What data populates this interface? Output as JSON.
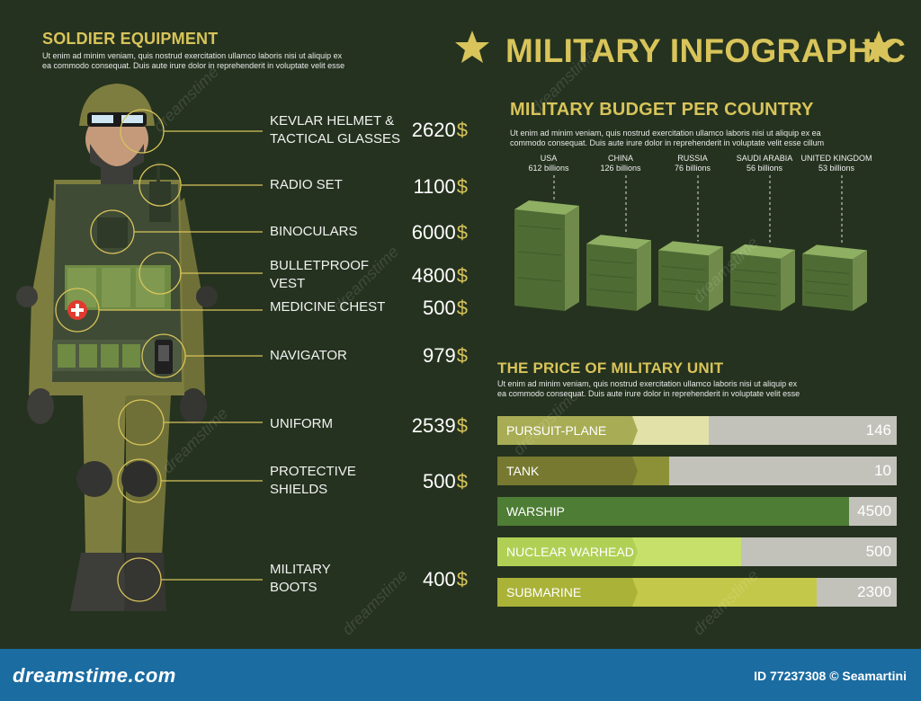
{
  "equipment": {
    "title": "SOLDIER EQUIPMENT",
    "description": "Ut enim ad minim veniam, quis nostrud exercitation ullamco laboris nisi ut aliquip ex\nea commodo consequat. Duis aute irure dolor in reprehenderit in voluptate velit esse",
    "currency": "$",
    "items": [
      {
        "label": "KEVLAR HELMET &\nTACTICAL GLASSES",
        "price": "2620"
      },
      {
        "label": "RADIO SET",
        "price": "1100"
      },
      {
        "label": "BINOCULARS",
        "price": "6000"
      },
      {
        "label": "BULLETPROOF\nVEST",
        "price": "4800"
      },
      {
        "label": "MEDICINE CHEST",
        "price": "500"
      },
      {
        "label": "NAVIGATOR",
        "price": "979"
      },
      {
        "label": "UNIFORM",
        "price": "2539"
      },
      {
        "label": "PROTECTIVE\nSHIELDS",
        "price": "500"
      },
      {
        "label": "MILITARY\nBOOTS",
        "price": "400"
      }
    ]
  },
  "header": {
    "title": "MILITARY INFOGRAPHIC"
  },
  "budget": {
    "title": "MILITARY BUDGET PER COUNTRY",
    "description": "Ut enim ad minim veniam, quis nostrud exercitation ullamco laboris nisi ut aliquip ex ea\ncommodo consequat. Duis aute irure dolor in reprehenderit in voluptate velit esse cillum"
  },
  "units": {
    "title": "THE PRICE OF MILITARY UNIT",
    "description": "Ut enim ad minim veniam, quis nostrud exercitation ullamco laboris nisi ut aliquip ex\nea commodo consequat. Duis aute irure dolor in reprehenderit in voluptate velit esse"
  },
  "footer": {
    "brand": "dreamstime.com",
    "meta": "ID 77237308 © Seamartini"
  },
  "watermark": "dreamstime",
  "colors": {
    "background": "#25321f",
    "accent": "#d8c45a",
    "footer": "#1a6ca1",
    "bar_track": "#c2c2bb"
  },
  "chart_data": [
    {
      "type": "bar",
      "title": "MILITARY BUDGET PER COUNTRY",
      "categories": [
        "USA",
        "CHINA",
        "RUSSIA",
        "SAUDI ARABIA",
        "UNITED KINGDOM"
      ],
      "values": [
        612,
        126,
        76,
        56,
        53
      ],
      "value_labels": [
        "612 billions",
        "126 billions",
        "76 billions",
        "56 billions",
        "53 billions"
      ],
      "unit": "billions"
    },
    {
      "type": "bar",
      "title": "THE PRICE OF MILITARY UNIT",
      "orientation": "horizontal",
      "categories": [
        "PURSUIT-PLANE",
        "TANK",
        "WARSHIP",
        "NUCLEAR WARHEAD",
        "SUBMARINE"
      ],
      "values": [
        146,
        10,
        4500,
        500,
        2300
      ],
      "value_labels": [
        "146",
        "10",
        "4500",
        "500",
        "2300"
      ],
      "fill_fraction": [
        0.53,
        0.43,
        0.88,
        0.61,
        0.8
      ],
      "fill_colors": [
        "#e2e2a8",
        "#8c9137",
        "#4e7d35",
        "#c6e06a",
        "#c4c84a"
      ],
      "label_colors": [
        "#a8ad55",
        "#76792f",
        "#4e7d35",
        "#b0d055",
        "#aab238"
      ]
    }
  ]
}
